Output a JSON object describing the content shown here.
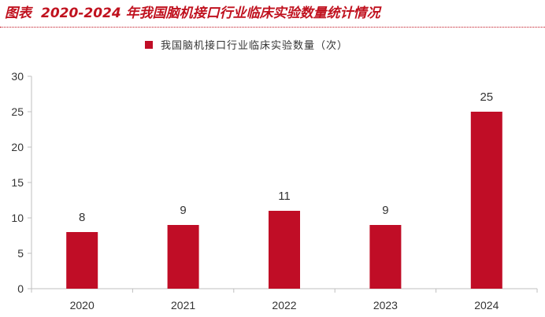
{
  "header": {
    "prefix": "图表",
    "text": "2020-2024 年我国脑机接口行业临床实验数量统计情况"
  },
  "colors": {
    "bar": "#c00d26",
    "title": "#c0121f",
    "axis": "#bfbfbf"
  },
  "chart_data": {
    "type": "bar",
    "title": "2020-2024 年我国脑机接口行业临床实验数量统计情况",
    "categories": [
      "2020",
      "2021",
      "2022",
      "2023",
      "2024"
    ],
    "series": [
      {
        "name": "我国脑机接口行业临床实验数量（次）",
        "values": [
          8,
          9,
          11,
          9,
          25
        ]
      }
    ],
    "data_labels": [
      "8",
      "9",
      "11",
      "9",
      "25"
    ],
    "ylim": [
      0,
      30
    ],
    "yticks": [
      0,
      5,
      10,
      15,
      20,
      25,
      30
    ],
    "xlabel": "",
    "ylabel": "",
    "legend": "top-center",
    "grid": false
  }
}
